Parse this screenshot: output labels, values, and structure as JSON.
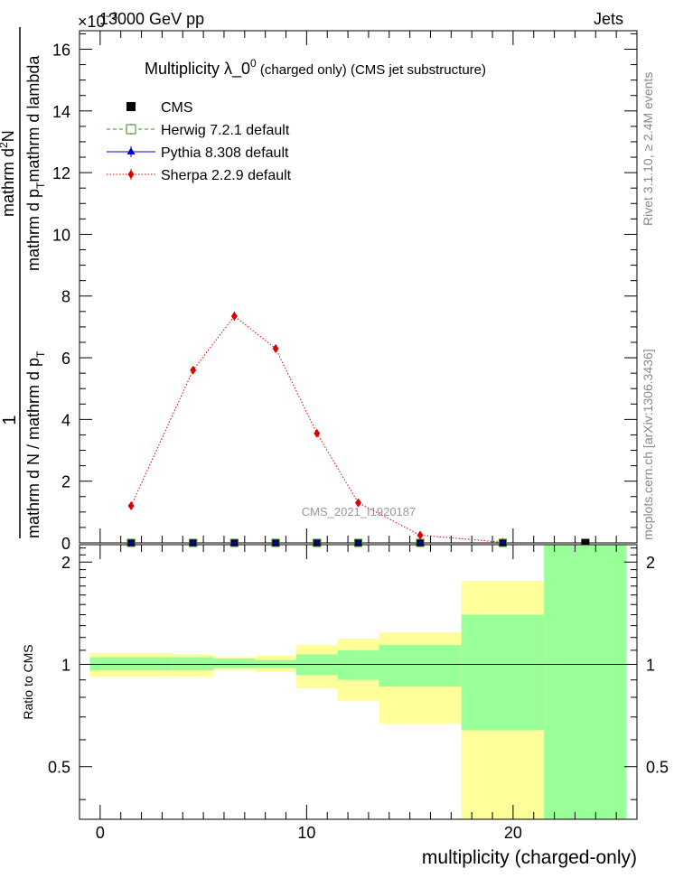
{
  "header": {
    "energy": "13000 GeV pp",
    "category": "Jets",
    "exponent_prefix": "×10",
    "exponent_power": "−3"
  },
  "side_labels": {
    "rivet": "Rivet 3.1.10, ≥ 2.4M events",
    "mcplots": "mcplots.cern.ch [arXiv:1306.3436]"
  },
  "watermark": "CMS_2021_I1920187",
  "chart_data": [
    {
      "type": "scatter",
      "title_main": "Multiplicity  λ_0",
      "title_sup": "0",
      "title_suffix": " (charged only) (CMS jet substructure)",
      "ylabel_numerator": "1",
      "ylabel_denominator": "mathrm d N / mathrm d p _T mathrm d p _T mathrm d lambda",
      "ylabel_parts": {
        "num_a": "mathrm d",
        "num_sup": "2",
        "num_b": "N",
        "den_a": "mathrm d p",
        "den_sub": "T",
        "den_b": "mathrm d lambda",
        "left_a": "mathrm d N / mathrm d p",
        "left_sub": "T"
      },
      "xlim": [
        -1,
        26
      ],
      "ylim": [
        0,
        16.6
      ],
      "y_scale_factor": "1e-3",
      "yticks": [
        0,
        2,
        4,
        6,
        8,
        10,
        12,
        14,
        16
      ],
      "legend": [
        {
          "name": "CMS",
          "marker": "square-filled",
          "color": "#000000"
        },
        {
          "name": "Herwig 7.2.1 default",
          "marker": "square-open",
          "color": "#3a8a1e",
          "line": "dashed"
        },
        {
          "name": "Pythia 8.308 default",
          "marker": "triangle",
          "color": "#0000cc",
          "line": "solid"
        },
        {
          "name": "Sherpa 2.2.9 default",
          "marker": "diamond",
          "color": "#dd0000",
          "line": "dotted"
        }
      ],
      "series": [
        {
          "name": "CMS",
          "x": [
            1.5,
            4.5,
            6.5,
            8.5,
            10.5,
            12.5,
            15.5,
            19.5,
            23.5
          ],
          "y": [
            0,
            0,
            0,
            0,
            0,
            0,
            0,
            0,
            0
          ]
        },
        {
          "name": "Sherpa 2.2.9 default",
          "x": [
            1.5,
            4.5,
            6.5,
            8.5,
            10.5,
            12.5,
            15.5,
            19.5
          ],
          "y": [
            1.2,
            5.6,
            7.35,
            6.3,
            3.55,
            1.3,
            0.25,
            0.02
          ],
          "yerr": [
            0.08,
            0.12,
            0.15,
            0.12,
            0.1,
            0.07,
            0.04,
            0.02
          ]
        }
      ]
    },
    {
      "type": "area",
      "ylabel": "Ratio to CMS",
      "xlabel": "multiplicity (charged-only)",
      "xlim": [
        -1,
        26
      ],
      "ylim": [
        0.35,
        2.25
      ],
      "xticks": [
        0,
        10,
        20
      ],
      "yticks": [
        0.5,
        1,
        2
      ],
      "ytick_labels": [
        "0.5",
        "1",
        "2"
      ],
      "reference_line": 1,
      "bins": [
        {
          "lo": -0.5,
          "hi": 3.5,
          "stat_lo": 0.96,
          "stat_hi": 1.05,
          "tot_lo": 0.92,
          "tot_hi": 1.08
        },
        {
          "lo": 3.5,
          "hi": 5.5,
          "stat_lo": 0.96,
          "stat_hi": 1.05,
          "tot_lo": 0.92,
          "tot_hi": 1.07
        },
        {
          "lo": 5.5,
          "hi": 7.5,
          "stat_lo": 0.975,
          "stat_hi": 1.04,
          "tot_lo": 0.96,
          "tot_hi": 1.05
        },
        {
          "lo": 7.5,
          "hi": 9.5,
          "stat_lo": 0.975,
          "stat_hi": 1.03,
          "tot_lo": 0.95,
          "tot_hi": 1.06
        },
        {
          "lo": 9.5,
          "hi": 11.5,
          "stat_lo": 0.93,
          "stat_hi": 1.07,
          "tot_lo": 0.85,
          "tot_hi": 1.14
        },
        {
          "lo": 11.5,
          "hi": 13.5,
          "stat_lo": 0.9,
          "stat_hi": 1.1,
          "tot_lo": 0.78,
          "tot_hi": 1.19
        },
        {
          "lo": 13.5,
          "hi": 17.5,
          "stat_lo": 0.86,
          "stat_hi": 1.14,
          "tot_lo": 0.67,
          "tot_hi": 1.24
        },
        {
          "lo": 17.5,
          "hi": 21.5,
          "stat_lo": 0.64,
          "stat_hi": 1.4,
          "tot_lo": 0.35,
          "tot_hi": 1.76
        },
        {
          "lo": 21.5,
          "hi": 25.5,
          "stat_lo": 0.35,
          "stat_hi": 2.25,
          "tot_lo": 0.35,
          "tot_hi": 2.25
        }
      ],
      "colors": {
        "stat": "#99ff99",
        "total": "#ffff99",
        "reference": "#000000"
      }
    }
  ]
}
